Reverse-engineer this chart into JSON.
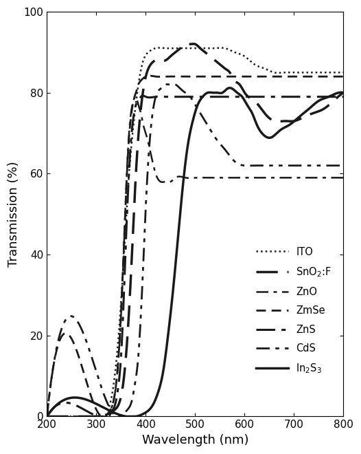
{
  "title": "",
  "xlabel": "Wavelength (nm)",
  "ylabel": "Transmission (%)",
  "xlim": [
    200,
    800
  ],
  "ylim": [
    0,
    100
  ],
  "xticks": [
    200,
    300,
    400,
    500,
    600,
    700,
    800
  ],
  "yticks": [
    0,
    20,
    40,
    60,
    80,
    100
  ],
  "color": "#1a1a1a",
  "curves": {
    "ITO": {
      "x": [
        200,
        295,
        305,
        315,
        325,
        335,
        345,
        355,
        365,
        375,
        385,
        395,
        405,
        420,
        440,
        460,
        480,
        500,
        520,
        540,
        560,
        580,
        600,
        620,
        640,
        660,
        680,
        700,
        720,
        740,
        760,
        780,
        800
      ],
      "y": [
        0,
        0,
        0,
        0,
        2,
        8,
        20,
        38,
        58,
        72,
        82,
        88,
        90,
        91,
        91,
        91,
        91,
        91,
        91,
        91,
        91,
        90,
        89,
        87,
        86,
        85,
        85,
        85,
        85,
        85,
        85,
        85,
        85
      ]
    },
    "SnO2F": {
      "x": [
        200,
        300,
        310,
        320,
        330,
        340,
        350,
        360,
        370,
        380,
        390,
        400,
        410,
        420,
        430,
        440,
        450,
        460,
        470,
        480,
        490,
        500,
        510,
        520,
        530,
        540,
        550,
        560,
        570,
        580,
        590,
        600,
        620,
        640,
        660,
        680,
        700,
        720,
        740,
        760,
        780,
        800
      ],
      "y": [
        0,
        0,
        0,
        0,
        1,
        2,
        5,
        15,
        35,
        60,
        76,
        84,
        87,
        88,
        88,
        88,
        89,
        90,
        91,
        92,
        92,
        92,
        91,
        90,
        89,
        88,
        87,
        86,
        85,
        83,
        82,
        80,
        78,
        75,
        73,
        73,
        73,
        74,
        75,
        76,
        78,
        80
      ]
    },
    "ZnO": {
      "x": [
        200,
        300,
        310,
        318,
        325,
        330,
        335,
        340,
        345,
        350,
        355,
        360,
        365,
        370,
        375,
        380,
        385,
        390,
        395,
        400,
        410,
        420,
        430,
        440,
        450,
        460,
        480,
        500,
        520,
        540,
        560,
        580,
        600,
        640,
        680,
        720,
        760,
        800
      ],
      "y": [
        0,
        0,
        0,
        0,
        1,
        2,
        4,
        8,
        15,
        25,
        40,
        56,
        68,
        75,
        78,
        79,
        77,
        75,
        72,
        70,
        65,
        60,
        58,
        58,
        58,
        59,
        59,
        59,
        59,
        59,
        59,
        59,
        59,
        59,
        59,
        59,
        59,
        59
      ]
    },
    "ZmSe": {
      "x": [
        200,
        310,
        318,
        325,
        330,
        335,
        340,
        345,
        350,
        355,
        360,
        365,
        370,
        375,
        380,
        385,
        390,
        400,
        420,
        440,
        460,
        480,
        500,
        520,
        540,
        560,
        580,
        600,
        640,
        680,
        720,
        760,
        800
      ],
      "y": [
        0,
        0,
        0,
        1,
        2,
        4,
        8,
        15,
        26,
        40,
        55,
        67,
        74,
        78,
        80,
        82,
        83,
        84,
        84,
        84,
        84,
        84,
        84,
        84,
        84,
        84,
        84,
        84,
        84,
        84,
        84,
        84,
        84
      ]
    },
    "ZnS": {
      "x": [
        200,
        310,
        315,
        320,
        325,
        330,
        335,
        340,
        345,
        350,
        355,
        360,
        365,
        370,
        375,
        380,
        385,
        390,
        400,
        420,
        440,
        460,
        480,
        500,
        540,
        580,
        620,
        660,
        700,
        740,
        780,
        800
      ],
      "y": [
        0,
        0,
        0,
        0,
        0,
        1,
        2,
        4,
        8,
        15,
        28,
        44,
        58,
        68,
        74,
        77,
        78,
        79,
        79,
        79,
        79,
        79,
        79,
        79,
        79,
        79,
        79,
        79,
        79,
        79,
        79,
        79
      ]
    },
    "CdS": {
      "x": [
        200,
        340,
        350,
        358,
        365,
        372,
        378,
        385,
        390,
        395,
        400,
        405,
        410,
        415,
        420,
        430,
        440,
        450,
        460,
        470,
        480,
        490,
        500,
        510,
        520,
        530,
        540,
        560,
        580,
        600,
        620,
        640,
        660,
        680,
        700,
        740,
        780,
        800
      ],
      "y": [
        0,
        0,
        0,
        1,
        2,
        4,
        8,
        15,
        25,
        38,
        52,
        63,
        71,
        76,
        79,
        81,
        82,
        82,
        82,
        81,
        80,
        79,
        77,
        75,
        73,
        71,
        69,
        66,
        63,
        62,
        62,
        62,
        62,
        62,
        62,
        62,
        62,
        62
      ]
    },
    "In2S3": {
      "x": [
        200,
        360,
        380,
        400,
        415,
        425,
        435,
        445,
        455,
        465,
        475,
        485,
        495,
        505,
        515,
        525,
        535,
        545,
        555,
        565,
        575,
        585,
        595,
        605,
        615,
        625,
        635,
        645,
        655,
        665,
        675,
        690,
        710,
        730,
        750,
        770,
        790,
        800
      ],
      "y": [
        0,
        0,
        0,
        1,
        3,
        6,
        11,
        20,
        31,
        44,
        57,
        67,
        73,
        77,
        79,
        80,
        80,
        80,
        80,
        81,
        81,
        80,
        79,
        77,
        75,
        72,
        70,
        69,
        69,
        70,
        71,
        72,
        74,
        76,
        78,
        79,
        80,
        80
      ]
    }
  }
}
